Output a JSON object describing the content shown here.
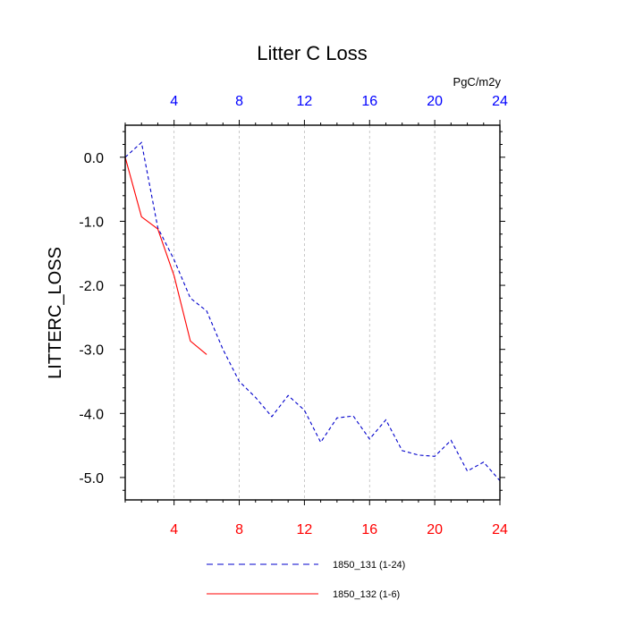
{
  "chart_data": {
    "type": "line",
    "title": "Litter C Loss",
    "ylabel": "LITTERC_LOSS",
    "units": "PgC/m2y",
    "xlim": [
      1,
      24
    ],
    "ylim": [
      -5.35,
      0.5
    ],
    "x_ticks": [
      4,
      8,
      12,
      16,
      20,
      24
    ],
    "x_tick_labels": [
      "4",
      "8",
      "12",
      "16",
      "20",
      "24"
    ],
    "y_ticks": [
      0,
      -1,
      -2,
      -3,
      -4,
      -5
    ],
    "y_tick_labels": [
      "0.0",
      "-1.0",
      "-2.0",
      "-3.0",
      "-4.0",
      "-5.0"
    ],
    "grid": "vertical-dashed",
    "legend_position": "bottom",
    "colors": {
      "top_axis": "#0000ff",
      "bottom_axis": "#ff0000"
    },
    "series": [
      {
        "name": "1850_131 (1-24)",
        "color": "#0000cc",
        "dash": "dashed",
        "x": [
          1,
          2,
          3,
          4,
          5,
          6,
          7,
          8,
          9,
          10,
          11,
          12,
          13,
          14,
          15,
          16,
          17,
          18,
          19,
          20,
          21,
          22,
          23,
          24
        ],
        "y": [
          0.0,
          0.23,
          -1.1,
          -1.6,
          -2.2,
          -2.4,
          -3.0,
          -3.5,
          -3.75,
          -4.05,
          -3.72,
          -3.95,
          -4.45,
          -4.07,
          -4.04,
          -4.4,
          -4.1,
          -4.58,
          -4.65,
          -4.67,
          -4.42,
          -4.9,
          -4.76,
          -5.05
        ]
      },
      {
        "name": "1850_132 (1-6)",
        "color": "#ff0000",
        "dash": "solid",
        "x": [
          1,
          2,
          3,
          4,
          5,
          6
        ],
        "y": [
          0.0,
          -0.93,
          -1.12,
          -1.85,
          -2.87,
          -3.08
        ]
      }
    ]
  }
}
